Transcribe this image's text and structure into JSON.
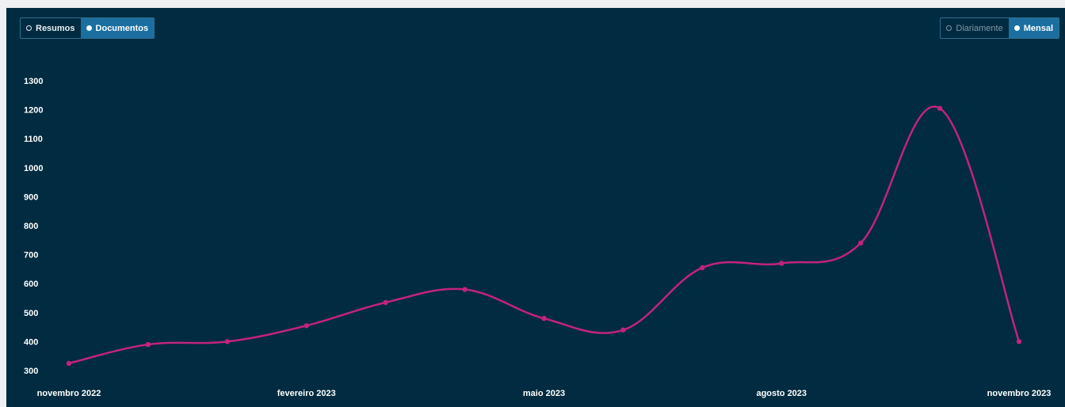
{
  "controls": {
    "data_type": [
      {
        "label": "Resumos",
        "selected": false
      },
      {
        "label": "Documentos",
        "selected": true
      }
    ],
    "period": [
      {
        "label": "Diariamente",
        "selected": false
      },
      {
        "label": "Mensal",
        "selected": true
      }
    ]
  },
  "colors": {
    "background": "#002b40",
    "line": "#c2237e",
    "accent": "#1a6fa0"
  },
  "chart_data": {
    "type": "line",
    "title": "",
    "xlabel": "",
    "ylabel": "",
    "x": [
      "2022-11",
      "2022-12",
      "2023-01",
      "2023-02",
      "2023-03",
      "2023-04",
      "2023-05",
      "2023-06",
      "2023-07",
      "2023-08",
      "2023-09",
      "2023-10",
      "2023-11"
    ],
    "series": [
      {
        "values": [
          325,
          390,
          400,
          455,
          535,
          580,
          480,
          440,
          655,
          670,
          740,
          1205,
          400
        ]
      }
    ],
    "ylim": [
      275,
      1350
    ],
    "y_ticks": [
      300,
      400,
      500,
      600,
      700,
      800,
      900,
      1000,
      1100,
      1200,
      1300
    ],
    "x_tick_labels": [
      {
        "index": 0,
        "label": "novembro 2022"
      },
      {
        "index": 3,
        "label": "fevereiro 2023"
      },
      {
        "index": 6,
        "label": "maio 2023"
      },
      {
        "index": 9,
        "label": "agosto 2023"
      },
      {
        "index": 12,
        "label": "novembro 2023"
      }
    ],
    "grid": false,
    "curve": "smooth"
  }
}
